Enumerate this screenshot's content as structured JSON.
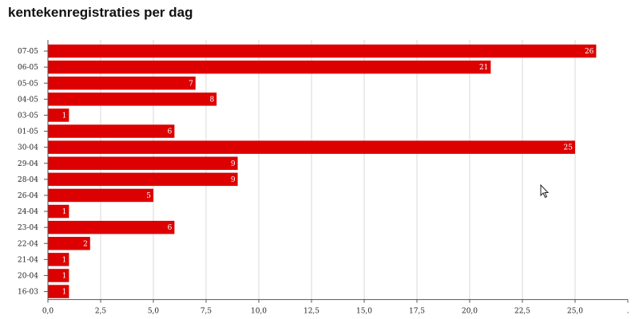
{
  "title": "kentekenregistraties per dag",
  "colors": {
    "bar": "#dd0000",
    "grid": "#d9d9d9",
    "axis": "#555555",
    "label": "#ffffff"
  },
  "chart_data": {
    "type": "bar",
    "orientation": "horizontal",
    "title": "kentekenregistraties per dag",
    "xlabel": "",
    "ylabel": "",
    "categories": [
      "07-05",
      "06-05",
      "05-05",
      "04-05",
      "03-05",
      "01-05",
      "30-04",
      "29-04",
      "28-04",
      "26-04",
      "24-04",
      "23-04",
      "22-04",
      "21-04",
      "20-04",
      "16-03"
    ],
    "values": [
      26,
      21,
      7,
      8,
      1,
      6,
      25,
      9,
      9,
      5,
      1,
      6,
      2,
      1,
      1,
      1
    ],
    "xlim": [
      0,
      27.5
    ],
    "xticks": [
      "0,0",
      "2,5",
      "5,0",
      "7,5",
      "10,0",
      "12,5",
      "15,0",
      "17,5",
      "20,0",
      "22,5",
      "25,0",
      "."
    ],
    "grid": true,
    "data_labels": true,
    "legend": "none"
  },
  "cursor": "pointer-arrow-icon"
}
